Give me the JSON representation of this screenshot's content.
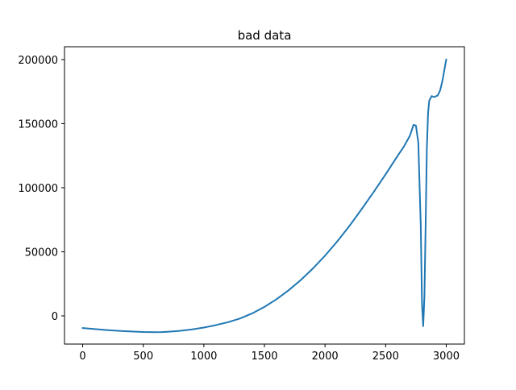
{
  "chart_data": {
    "type": "line",
    "title": "bad data",
    "xlabel": "",
    "ylabel": "",
    "xlim": [
      -150,
      3150
    ],
    "ylim": [
      -22000,
      210000
    ],
    "x_ticks": [
      0,
      500,
      1000,
      1500,
      2000,
      2500,
      3000
    ],
    "y_ticks": [
      0,
      50000,
      100000,
      150000,
      200000
    ],
    "x_tick_labels": [
      "0",
      "500",
      "1000",
      "1500",
      "2000",
      "2500",
      "3000"
    ],
    "y_tick_labels": [
      "0",
      "50000",
      "100000",
      "150000",
      "200000"
    ],
    "grid": false,
    "legend": "none",
    "series": [
      {
        "color": "#1f77b4",
        "x": [
          0,
          100,
          200,
          300,
          400,
          500,
          600,
          650,
          700,
          800,
          900,
          1000,
          1100,
          1200,
          1300,
          1400,
          1500,
          1600,
          1700,
          1800,
          1900,
          2000,
          2100,
          2200,
          2300,
          2400,
          2500,
          2600,
          2650,
          2700,
          2730,
          2750,
          2770,
          2790,
          2800,
          2810,
          2820,
          2830,
          2840,
          2850,
          2860,
          2880,
          2900,
          2930,
          2950,
          2970,
          3000
        ],
        "y": [
          -9500,
          -10300,
          -11100,
          -11700,
          -12200,
          -12600,
          -12700,
          -12650,
          -12400,
          -11700,
          -10600,
          -9100,
          -7200,
          -4900,
          -2000,
          2000,
          7000,
          13000,
          20000,
          28000,
          37000,
          47000,
          58000,
          70000,
          83000,
          96500,
          110500,
          125000,
          132000,
          140500,
          149000,
          148500,
          135000,
          70000,
          10000,
          -8000,
          15000,
          70000,
          130000,
          158000,
          168000,
          171500,
          170700,
          172000,
          176000,
          184000,
          200000
        ]
      }
    ]
  }
}
